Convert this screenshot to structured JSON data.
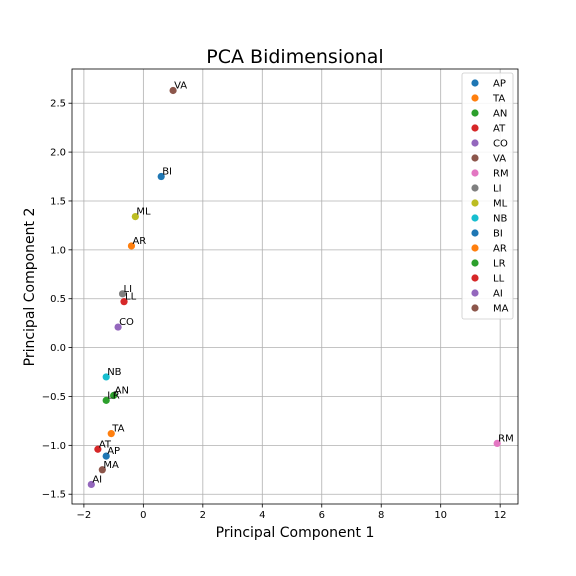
{
  "chart_data": {
    "type": "scatter",
    "title": "PCA Bidimensional",
    "xlabel": "Principal Component 1",
    "ylabel": "Principal Component 2",
    "xlim": [
      -2.4,
      12.6
    ],
    "ylim": [
      -1.6,
      2.85
    ],
    "xticks": [
      -2,
      0,
      2,
      4,
      6,
      8,
      10,
      12
    ],
    "yticks": [
      -1.5,
      -1.0,
      -0.5,
      0.0,
      0.5,
      1.0,
      1.5,
      2.0,
      2.5
    ],
    "xtick_labels": [
      "−2",
      "0",
      "2",
      "4",
      "6",
      "8",
      "10",
      "12"
    ],
    "ytick_labels": [
      "−1.5",
      "−1.0",
      "−0.5",
      "0.0",
      "0.5",
      "1.0",
      "1.5",
      "2.0",
      "2.5"
    ],
    "grid": true,
    "legend_position": "top-right",
    "series": [
      {
        "name": "AP",
        "x": -1.25,
        "y": -1.11,
        "color": "#1f77b4"
      },
      {
        "name": "TA",
        "x": -1.08,
        "y": -0.88,
        "color": "#ff7f0e"
      },
      {
        "name": "AN",
        "x": -1.0,
        "y": -0.49,
        "color": "#2ca02c"
      },
      {
        "name": "AT",
        "x": -1.53,
        "y": -1.04,
        "color": "#d62728"
      },
      {
        "name": "CO",
        "x": -0.85,
        "y": 0.21,
        "color": "#9467bd"
      },
      {
        "name": "VA",
        "x": 1.0,
        "y": 2.63,
        "color": "#8c564b"
      },
      {
        "name": "RM",
        "x": 11.9,
        "y": -0.98,
        "color": "#e377c2"
      },
      {
        "name": "LI",
        "x": -0.7,
        "y": 0.55,
        "color": "#7f7f7f"
      },
      {
        "name": "ML",
        "x": -0.27,
        "y": 1.34,
        "color": "#bcbd22"
      },
      {
        "name": "NB",
        "x": -1.25,
        "y": -0.3,
        "color": "#17becf"
      },
      {
        "name": "BI",
        "x": 0.6,
        "y": 1.75,
        "color": "#1f77b4"
      },
      {
        "name": "AR",
        "x": -0.4,
        "y": 1.04,
        "color": "#ff7f0e"
      },
      {
        "name": "LR",
        "x": -1.25,
        "y": -0.54,
        "color": "#2ca02c"
      },
      {
        "name": "LL",
        "x": -0.65,
        "y": 0.47,
        "color": "#d62728"
      },
      {
        "name": "AI",
        "x": -1.75,
        "y": -1.4,
        "color": "#9467bd"
      },
      {
        "name": "MA",
        "x": -1.38,
        "y": -1.25,
        "color": "#8c564b"
      }
    ]
  }
}
